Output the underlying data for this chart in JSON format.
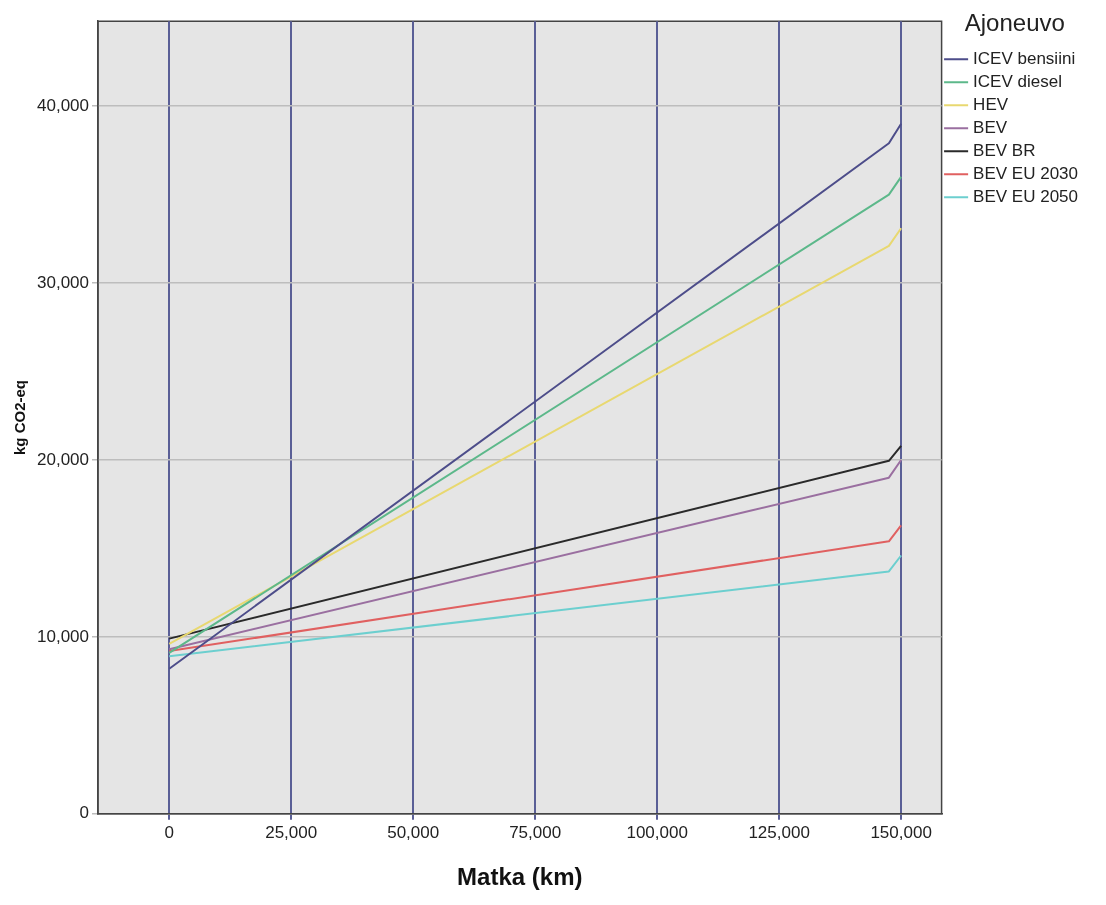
{
  "chart_data": {
    "type": "line",
    "xlabel": "Matka (km)",
    "ylabel": "kg CO2-eq",
    "legend_title": "Ajoneuvo",
    "legend": "top right",
    "grid": true,
    "marker": "none",
    "line_style": "solid",
    "x": [
      0,
      147500,
      150000
    ],
    "xlim": [
      -14600,
      158300
    ],
    "xticks": [
      0,
      {
        "value": 25000,
        "label": "25,000"
      },
      {
        "value": 50000,
        "label": "50,000"
      },
      {
        "value": 75000,
        "label": "75,000"
      },
      {
        "value": 100000,
        "label": "100,000"
      },
      {
        "value": 125000,
        "label": "125,000"
      },
      {
        "value": 150000,
        "label": "150,000"
      }
    ],
    "ylim": [
      0,
      44800
    ],
    "yticks": [
      0,
      {
        "value": 10000,
        "label": "10,000"
      },
      {
        "value": 20000,
        "label": "20,000"
      },
      {
        "value": 30000,
        "label": "30,000"
      },
      {
        "value": 40000,
        "label": "40,000"
      }
    ],
    "series": [
      {
        "name": "ICEV bensiini",
        "color": "#4d4d8a",
        "values": [
          8200,
          37900,
          39000
        ]
      },
      {
        "name": "ICEV diesel",
        "color": "#5cb88a",
        "values": [
          9100,
          35000,
          36000
        ]
      },
      {
        "name": "HEV",
        "color": "#e8d870",
        "values": [
          9600,
          32100,
          33100
        ]
      },
      {
        "name": "BEV",
        "color": "#9a6fa0",
        "values": [
          9300,
          19000,
          20000
        ]
      },
      {
        "name": "BEV BR",
        "color": "#2a2a2a",
        "values": [
          9900,
          19950,
          20800
        ]
      },
      {
        "name": "BEV EU 2030",
        "color": "#e06060",
        "values": [
          9200,
          15400,
          16300
        ]
      },
      {
        "name": "BEV EU 2050",
        "color": "#6ccfcf",
        "values": [
          8900,
          13700,
          14600
        ]
      }
    ]
  }
}
